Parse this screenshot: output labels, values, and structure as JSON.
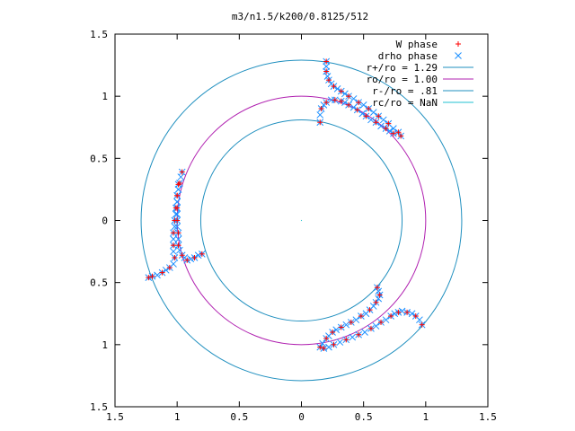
{
  "chart_data": {
    "type": "scatter",
    "title": "m3/n1.5/k200/0.8125/512",
    "xlabel": "",
    "ylabel": "",
    "xlim": [
      -1.5,
      1.5
    ],
    "ylim": [
      -1.5,
      1.5
    ],
    "grid": false,
    "legend_position": "top-right",
    "x_ticks": [
      {
        "value": -1.5,
        "label": "1.5"
      },
      {
        "value": -1.0,
        "label": "1"
      },
      {
        "value": -0.5,
        "label": "0.5"
      },
      {
        "value": 0.0,
        "label": "0"
      },
      {
        "value": 0.5,
        "label": "0.5"
      },
      {
        "value": 1.0,
        "label": "1"
      },
      {
        "value": 1.5,
        "label": "1.5"
      }
    ],
    "y_ticks": [
      {
        "value": 1.5,
        "label": "1.5"
      },
      {
        "value": 1.0,
        "label": "1"
      },
      {
        "value": 0.5,
        "label": "0.5"
      },
      {
        "value": 0.0,
        "label": "0"
      },
      {
        "value": -0.5,
        "label": "0.5"
      },
      {
        "value": -1.0,
        "label": "1"
      },
      {
        "value": -1.5,
        "label": "1.5"
      }
    ],
    "circles": [
      {
        "name": "r+/ro = 1.29",
        "radius": 1.29,
        "color": "#1f8fbf"
      },
      {
        "name": "ro/ro = 1.00",
        "radius": 1.0,
        "color": "#b020b0"
      },
      {
        "name": "r-/ro = .81",
        "radius": 0.81,
        "color": "#1f8fbf"
      },
      {
        "name": "rc/ro = NaN",
        "radius": null,
        "color": "#20c0d0"
      }
    ],
    "series": [
      {
        "name": "W phase",
        "marker": "plus",
        "color": "#ff0000",
        "arms": [
          {
            "points": [
              [
                0.2,
                1.28
              ],
              [
                0.2,
                1.2
              ],
              [
                0.22,
                1.13
              ],
              [
                0.26,
                1.08
              ],
              [
                0.32,
                1.04
              ],
              [
                0.38,
                1.0
              ],
              [
                0.46,
                0.95
              ],
              [
                0.54,
                0.9
              ],
              [
                0.62,
                0.84
              ],
              [
                0.7,
                0.78
              ],
              [
                0.78,
                0.71
              ],
              [
                0.8,
                0.68
              ]
            ]
          },
          {
            "points": [
              [
                0.15,
                0.79
              ],
              [
                0.16,
                0.9
              ],
              [
                0.2,
                0.95
              ],
              [
                0.27,
                0.97
              ],
              [
                0.32,
                0.96
              ],
              [
                0.38,
                0.93
              ],
              [
                0.45,
                0.89
              ],
              [
                0.52,
                0.84
              ],
              [
                0.6,
                0.79
              ],
              [
                0.68,
                0.74
              ],
              [
                0.74,
                0.7
              ]
            ]
          },
          {
            "points": [
              [
                -0.96,
                0.39
              ],
              [
                -0.98,
                0.3
              ],
              [
                -1.0,
                0.2
              ],
              [
                -1.01,
                0.1
              ],
              [
                -1.02,
                0.0
              ],
              [
                -1.03,
                -0.1
              ],
              [
                -1.03,
                -0.2
              ],
              [
                -1.02,
                -0.3
              ],
              [
                -1.06,
                -0.38
              ],
              [
                -1.12,
                -0.42
              ],
              [
                -1.2,
                -0.45
              ],
              [
                -1.23,
                -0.46
              ]
            ]
          },
          {
            "points": [
              [
                -0.99,
                0.29
              ],
              [
                -1.0,
                0.2
              ],
              [
                -1.0,
                0.1
              ],
              [
                -1.0,
                0.0
              ],
              [
                -0.99,
                -0.1
              ],
              [
                -0.99,
                -0.2
              ],
              [
                -0.96,
                -0.28
              ],
              [
                -0.92,
                -0.32
              ],
              [
                -0.86,
                -0.3
              ],
              [
                -0.8,
                -0.27
              ]
            ]
          },
          {
            "points": [
              [
                0.61,
                -0.54
              ],
              [
                0.63,
                -0.6
              ],
              [
                0.6,
                -0.66
              ],
              [
                0.55,
                -0.72
              ],
              [
                0.48,
                -0.77
              ],
              [
                0.4,
                -0.82
              ],
              [
                0.32,
                -0.86
              ],
              [
                0.25,
                -0.9
              ],
              [
                0.2,
                -0.95
              ],
              [
                0.15,
                -1.02
              ]
            ]
          },
          {
            "points": [
              [
                0.97,
                -0.84
              ],
              [
                0.92,
                -0.77
              ],
              [
                0.85,
                -0.74
              ],
              [
                0.78,
                -0.74
              ],
              [
                0.72,
                -0.77
              ],
              [
                0.64,
                -0.82
              ],
              [
                0.56,
                -0.87
              ],
              [
                0.46,
                -0.92
              ],
              [
                0.36,
                -0.96
              ],
              [
                0.26,
                -1.0
              ],
              [
                0.18,
                -1.03
              ]
            ]
          }
        ]
      },
      {
        "name": "drho phase",
        "marker": "cross",
        "color": "#1e90ff",
        "arms": [
          {
            "points": [
              [
                0.2,
                1.28
              ],
              [
                0.2,
                1.24
              ],
              [
                0.2,
                1.2
              ],
              [
                0.21,
                1.16
              ],
              [
                0.22,
                1.13
              ],
              [
                0.24,
                1.1
              ],
              [
                0.26,
                1.08
              ],
              [
                0.29,
                1.06
              ],
              [
                0.32,
                1.04
              ],
              [
                0.35,
                1.02
              ],
              [
                0.38,
                1.0
              ],
              [
                0.42,
                0.98
              ],
              [
                0.46,
                0.95
              ],
              [
                0.5,
                0.93
              ],
              [
                0.54,
                0.9
              ],
              [
                0.58,
                0.87
              ],
              [
                0.62,
                0.84
              ],
              [
                0.66,
                0.81
              ],
              [
                0.7,
                0.78
              ],
              [
                0.74,
                0.74
              ],
              [
                0.78,
                0.71
              ],
              [
                0.8,
                0.68
              ]
            ]
          },
          {
            "points": [
              [
                0.15,
                0.79
              ],
              [
                0.15,
                0.85
              ],
              [
                0.16,
                0.9
              ],
              [
                0.18,
                0.93
              ],
              [
                0.2,
                0.95
              ],
              [
                0.24,
                0.97
              ],
              [
                0.27,
                0.97
              ],
              [
                0.32,
                0.96
              ],
              [
                0.35,
                0.95
              ],
              [
                0.38,
                0.93
              ],
              [
                0.42,
                0.91
              ],
              [
                0.45,
                0.89
              ],
              [
                0.49,
                0.86
              ],
              [
                0.52,
                0.84
              ],
              [
                0.56,
                0.81
              ],
              [
                0.6,
                0.79
              ],
              [
                0.64,
                0.76
              ],
              [
                0.68,
                0.74
              ],
              [
                0.71,
                0.72
              ],
              [
                0.74,
                0.7
              ]
            ]
          },
          {
            "points": [
              [
                -0.96,
                0.39
              ],
              [
                -0.97,
                0.35
              ],
              [
                -0.98,
                0.3
              ],
              [
                -0.99,
                0.25
              ],
              [
                -1.0,
                0.2
              ],
              [
                -1.0,
                0.15
              ],
              [
                -1.01,
                0.1
              ],
              [
                -1.01,
                0.05
              ],
              [
                -1.02,
                0.0
              ],
              [
                -1.02,
                -0.05
              ],
              [
                -1.03,
                -0.1
              ],
              [
                -1.03,
                -0.15
              ],
              [
                -1.03,
                -0.2
              ],
              [
                -1.03,
                -0.25
              ],
              [
                -1.02,
                -0.3
              ],
              [
                -1.03,
                -0.35
              ],
              [
                -1.06,
                -0.38
              ],
              [
                -1.09,
                -0.4
              ],
              [
                -1.12,
                -0.42
              ],
              [
                -1.16,
                -0.44
              ],
              [
                -1.2,
                -0.45
              ],
              [
                -1.23,
                -0.46
              ]
            ]
          },
          {
            "points": [
              [
                -0.99,
                0.29
              ],
              [
                -0.99,
                0.25
              ],
              [
                -1.0,
                0.2
              ],
              [
                -1.0,
                0.15
              ],
              [
                -1.0,
                0.1
              ],
              [
                -1.0,
                0.05
              ],
              [
                -1.0,
                0.0
              ],
              [
                -1.0,
                -0.05
              ],
              [
                -0.99,
                -0.1
              ],
              [
                -0.99,
                -0.15
              ],
              [
                -0.99,
                -0.2
              ],
              [
                -0.98,
                -0.24
              ],
              [
                -0.96,
                -0.28
              ],
              [
                -0.94,
                -0.3
              ],
              [
                -0.92,
                -0.32
              ],
              [
                -0.89,
                -0.31
              ],
              [
                -0.86,
                -0.3
              ],
              [
                -0.83,
                -0.28
              ],
              [
                -0.8,
                -0.27
              ]
            ]
          },
          {
            "points": [
              [
                0.61,
                -0.54
              ],
              [
                0.62,
                -0.57
              ],
              [
                0.63,
                -0.6
              ],
              [
                0.62,
                -0.63
              ],
              [
                0.6,
                -0.66
              ],
              [
                0.58,
                -0.69
              ],
              [
                0.55,
                -0.72
              ],
              [
                0.52,
                -0.75
              ],
              [
                0.48,
                -0.77
              ],
              [
                0.44,
                -0.8
              ],
              [
                0.4,
                -0.82
              ],
              [
                0.36,
                -0.84
              ],
              [
                0.32,
                -0.86
              ],
              [
                0.28,
                -0.88
              ],
              [
                0.25,
                -0.9
              ],
              [
                0.22,
                -0.93
              ],
              [
                0.2,
                -0.95
              ],
              [
                0.17,
                -0.99
              ],
              [
                0.15,
                -1.02
              ]
            ]
          },
          {
            "points": [
              [
                0.97,
                -0.84
              ],
              [
                0.95,
                -0.8
              ],
              [
                0.92,
                -0.77
              ],
              [
                0.89,
                -0.75
              ],
              [
                0.85,
                -0.74
              ],
              [
                0.81,
                -0.73
              ],
              [
                0.78,
                -0.74
              ],
              [
                0.75,
                -0.75
              ],
              [
                0.72,
                -0.77
              ],
              [
                0.68,
                -0.8
              ],
              [
                0.64,
                -0.82
              ],
              [
                0.6,
                -0.85
              ],
              [
                0.56,
                -0.87
              ],
              [
                0.51,
                -0.9
              ],
              [
                0.46,
                -0.92
              ],
              [
                0.41,
                -0.94
              ],
              [
                0.36,
                -0.96
              ],
              [
                0.31,
                -0.98
              ],
              [
                0.26,
                -1.0
              ],
              [
                0.22,
                -1.02
              ],
              [
                0.18,
                -1.03
              ]
            ]
          }
        ]
      }
    ],
    "legend": [
      {
        "label": "W phase",
        "kind": "marker",
        "marker": "plus",
        "color": "#ff0000"
      },
      {
        "label": "drho phase",
        "kind": "marker",
        "marker": "cross",
        "color": "#1e90ff"
      },
      {
        "label": "r+/ro = 1.29",
        "kind": "line",
        "color": "#1f8fbf"
      },
      {
        "label": "ro/ro = 1.00",
        "kind": "line",
        "color": "#b020b0"
      },
      {
        "label": "r-/ro = .81",
        "kind": "line",
        "color": "#1f8fbf"
      },
      {
        "label": "rc/ro = NaN",
        "kind": "line",
        "color": "#20c0d0"
      }
    ]
  }
}
